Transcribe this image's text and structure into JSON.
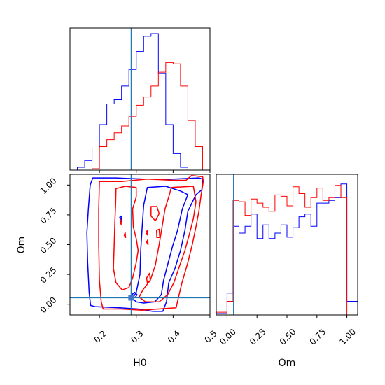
{
  "chart_data": [
    {
      "type": "histogram",
      "panel": "H0 marginal",
      "bin_edges": [
        0.12,
        0.14,
        0.16,
        0.18,
        0.2,
        0.22,
        0.24,
        0.26,
        0.28,
        0.3,
        0.32,
        0.34,
        0.36,
        0.38,
        0.4,
        0.42,
        0.44,
        0.46,
        0.48
      ],
      "series": [
        {
          "color": "#0000ff",
          "values": [
            0,
            0.02,
            0.07,
            0.16,
            0.33,
            0.48,
            0.51,
            0.61,
            0.73,
            0.86,
            0.97,
            0.99,
            0.7,
            0.33,
            0.12,
            0.02,
            0,
            0
          ]
        },
        {
          "color": "#ff0000",
          "values": [
            0,
            0,
            0,
            0.01,
            0.17,
            0.22,
            0.27,
            0.32,
            0.39,
            0.47,
            0.53,
            0.61,
            0.71,
            0.78,
            0.77,
            0.61,
            0.36,
            0.17
          ]
        }
      ],
      "truth_x": 0.286,
      "xlim": [
        0.12,
        0.5
      ],
      "xticks": [
        0.2,
        0.3,
        0.4,
        0.5
      ]
    },
    {
      "type": "contour",
      "panel": "H0 vs Om",
      "xlabel": "H0",
      "ylabel": "Om",
      "xlim": [
        0.12,
        0.5
      ],
      "ylim": [
        -0.09,
        1.09
      ],
      "xtick_labels": [
        "0.2",
        "0.3",
        "0.4",
        "0.5"
      ],
      "ytick_labels": [
        "0.00",
        "0.25",
        "0.50",
        "0.75",
        "1.00"
      ],
      "truth": {
        "H0": 0.286,
        "Om": 0.054
      },
      "contours": [
        {
          "color": "#0000ff",
          "level": "outer",
          "points": [
            [
              0.175,
              1.0
            ],
            [
              0.182,
              1.06
            ],
            [
              0.245,
              1.06
            ],
            [
              0.32,
              1.05
            ],
            [
              0.4,
              1.05
            ],
            [
              0.47,
              1.06
            ],
            [
              0.48,
              1.05
            ],
            [
              0.478,
              0.96
            ],
            [
              0.462,
              0.92
            ],
            [
              0.44,
              0.78
            ],
            [
              0.432,
              0.62
            ],
            [
              0.42,
              0.45
            ],
            [
              0.405,
              0.3
            ],
            [
              0.388,
              0.18
            ],
            [
              0.382,
              0.02
            ],
            [
              0.372,
              -0.06
            ],
            [
              0.345,
              -0.06
            ],
            [
              0.305,
              -0.04
            ],
            [
              0.255,
              -0.03
            ],
            [
              0.188,
              -0.02
            ],
            [
              0.176,
              -0.01
            ],
            [
              0.172,
              0.1
            ],
            [
              0.168,
              0.35
            ],
            [
              0.166,
              0.6
            ],
            [
              0.17,
              0.8
            ],
            [
              0.175,
              1.0
            ]
          ]
        },
        {
          "color": "#0000ff",
          "level": "middle",
          "points": [
            [
              0.33,
              0.98
            ],
            [
              0.38,
              0.99
            ],
            [
              0.42,
              0.95
            ],
            [
              0.44,
              0.92
            ],
            [
              0.425,
              0.8
            ],
            [
              0.412,
              0.62
            ],
            [
              0.398,
              0.48
            ],
            [
              0.385,
              0.33
            ],
            [
              0.374,
              0.2
            ],
            [
              0.368,
              0.08
            ],
            [
              0.35,
              0.02
            ],
            [
              0.32,
              0.01
            ],
            [
              0.3,
              0.02
            ],
            [
              0.29,
              0.05
            ],
            [
              0.3,
              0.1
            ],
            [
              0.31,
              0.25
            ],
            [
              0.312,
              0.45
            ],
            [
              0.316,
              0.65
            ],
            [
              0.32,
              0.83
            ],
            [
              0.33,
              0.98
            ]
          ]
        },
        {
          "color": "#0000ff",
          "level": "inner",
          "points": [
            [
              0.285,
              0.05
            ],
            [
              0.298,
              0.06
            ],
            [
              0.302,
              0.08
            ],
            [
              0.296,
              0.1
            ],
            [
              0.288,
              0.08
            ],
            [
              0.285,
              0.05
            ]
          ]
        },
        {
          "color": "#ff0000",
          "level": "outer",
          "points": [
            [
              0.2,
              1.03
            ],
            [
              0.26,
              1.03
            ],
            [
              0.33,
              1.05
            ],
            [
              0.4,
              1.04
            ],
            [
              0.435,
              1.04
            ],
            [
              0.45,
              1.08
            ],
            [
              0.48,
              1.07
            ],
            [
              0.482,
              1.03
            ],
            [
              0.476,
              0.92
            ],
            [
              0.47,
              0.78
            ],
            [
              0.462,
              0.65
            ],
            [
              0.452,
              0.5
            ],
            [
              0.44,
              0.35
            ],
            [
              0.424,
              0.18
            ],
            [
              0.414,
              0.05
            ],
            [
              0.408,
              -0.03
            ],
            [
              0.36,
              -0.04
            ],
            [
              0.315,
              -0.05
            ],
            [
              0.26,
              -0.04
            ],
            [
              0.21,
              -0.04
            ],
            [
              0.205,
              0.02
            ],
            [
              0.2,
              0.2
            ],
            [
              0.198,
              0.5
            ],
            [
              0.198,
              0.8
            ],
            [
              0.2,
              1.03
            ]
          ]
        },
        {
          "color": "#ff0000",
          "level": "middle",
          "points": [
            [
              0.245,
              0.97
            ],
            [
              0.27,
              0.99
            ],
            [
              0.3,
              0.98
            ],
            [
              0.3,
              0.9
            ],
            [
              0.29,
              0.8
            ],
            [
              0.292,
              0.65
            ],
            [
              0.3,
              0.55
            ],
            [
              0.305,
              0.45
            ],
            [
              0.3,
              0.35
            ],
            [
              0.29,
              0.22
            ],
            [
              0.28,
              0.14
            ],
            [
              0.262,
              0.12
            ],
            [
              0.245,
              0.18
            ],
            [
              0.238,
              0.3
            ],
            [
              0.24,
              0.5
            ],
            [
              0.242,
              0.7
            ],
            [
              0.244,
              0.85
            ],
            [
              0.245,
              0.97
            ]
          ]
        },
        {
          "color": "#ff0000",
          "level": "right-lobe",
          "points": [
            [
              0.395,
              0.98
            ],
            [
              0.455,
              0.99
            ],
            [
              0.462,
              0.86
            ],
            [
              0.455,
              0.72
            ],
            [
              0.445,
              0.6
            ],
            [
              0.432,
              0.45
            ],
            [
              0.415,
              0.3
            ],
            [
              0.402,
              0.18
            ],
            [
              0.385,
              0.08
            ],
            [
              0.362,
              0.02
            ],
            [
              0.325,
              0.02
            ],
            [
              0.308,
              0.06
            ],
            [
              0.318,
              0.12
            ],
            [
              0.338,
              0.2
            ],
            [
              0.352,
              0.33
            ],
            [
              0.362,
              0.5
            ],
            [
              0.37,
              0.65
            ],
            [
              0.378,
              0.8
            ],
            [
              0.39,
              0.92
            ],
            [
              0.395,
              0.98
            ]
          ]
        },
        {
          "color": "#ff0000",
          "level": "inner-a",
          "points": [
            [
              0.34,
              0.82
            ],
            [
              0.356,
              0.82
            ],
            [
              0.362,
              0.76
            ],
            [
              0.352,
              0.7
            ],
            [
              0.34,
              0.74
            ],
            [
              0.34,
              0.82
            ]
          ]
        },
        {
          "color": "#ff0000",
          "level": "inner-b",
          "points": [
            [
              0.328,
              0.22
            ],
            [
              0.336,
              0.26
            ],
            [
              0.338,
              0.2
            ],
            [
              0.33,
              0.18
            ],
            [
              0.328,
              0.22
            ]
          ]
        },
        {
          "color": "#ff0000",
          "level": "inner-c",
          "points": [
            [
              0.355,
              0.62
            ],
            [
              0.362,
              0.63
            ],
            [
              0.364,
              0.56
            ],
            [
              0.356,
              0.56
            ],
            [
              0.355,
              0.62
            ]
          ]
        },
        {
          "color": "#ff0000",
          "level": "inner-d",
          "points": [
            [
              0.327,
              0.6
            ],
            [
              0.33,
              0.62
            ],
            [
              0.331,
              0.58
            ],
            [
              0.327,
              0.6
            ]
          ]
        },
        {
          "color": "#ff0000",
          "level": "inner-e",
          "points": [
            [
              0.328,
              0.52
            ],
            [
              0.331,
              0.54
            ],
            [
              0.332,
              0.5
            ],
            [
              0.328,
              0.52
            ]
          ]
        },
        {
          "color": "#ff0000",
          "level": "inner-f",
          "points": [
            [
              0.267,
              0.58
            ],
            [
              0.27,
              0.6
            ],
            [
              0.271,
              0.56
            ],
            [
              0.267,
              0.58
            ]
          ]
        },
        {
          "color": "#0000ff",
          "level": "inner-g",
          "points": [
            [
              0.255,
              0.73
            ],
            [
              0.259,
              0.74
            ],
            [
              0.259,
              0.69
            ],
            [
              0.255,
              0.73
            ]
          ]
        },
        {
          "color": "#ff0000",
          "level": "inner-h",
          "points": [
            [
              0.256,
              0.69
            ],
            [
              0.258,
              0.71
            ],
            [
              0.259,
              0.67
            ],
            [
              0.256,
              0.69
            ]
          ]
        }
      ]
    },
    {
      "type": "histogram",
      "panel": "Om marginal",
      "xlabel": "Om",
      "bin_edges": [
        -0.09,
        0.0,
        0.05,
        0.1,
        0.15,
        0.2,
        0.25,
        0.3,
        0.35,
        0.4,
        0.45,
        0.5,
        0.55,
        0.6,
        0.65,
        0.7,
        0.75,
        0.8,
        0.85,
        0.9,
        0.95,
        1.0,
        1.09
      ],
      "series": [
        {
          "color": "#0000ff",
          "values": [
            0.01,
            0.16,
            0.65,
            0.6,
            0.65,
            0.74,
            0.56,
            0.66,
            0.56,
            0.6,
            0.66,
            0.57,
            0.64,
            0.72,
            0.74,
            0.65,
            0.82,
            0.82,
            0.84,
            0.86,
            0.96,
            0.1
          ]
        },
        {
          "color": "#ff0000",
          "values": [
            0.02,
            0.1,
            0.84,
            0.83,
            0.73,
            0.85,
            0.82,
            0.79,
            0.76,
            0.88,
            0.87,
            0.8,
            0.94,
            0.89,
            0.79,
            0.86,
            0.93,
            0.84,
            0.86,
            0.95,
            0.86,
            0.0
          ]
        }
      ],
      "truth_x": 0.054,
      "xlim": [
        -0.09,
        1.09
      ],
      "xtick_labels": [
        "0.00",
        "0.25",
        "0.50",
        "0.75",
        "1.00"
      ]
    }
  ]
}
